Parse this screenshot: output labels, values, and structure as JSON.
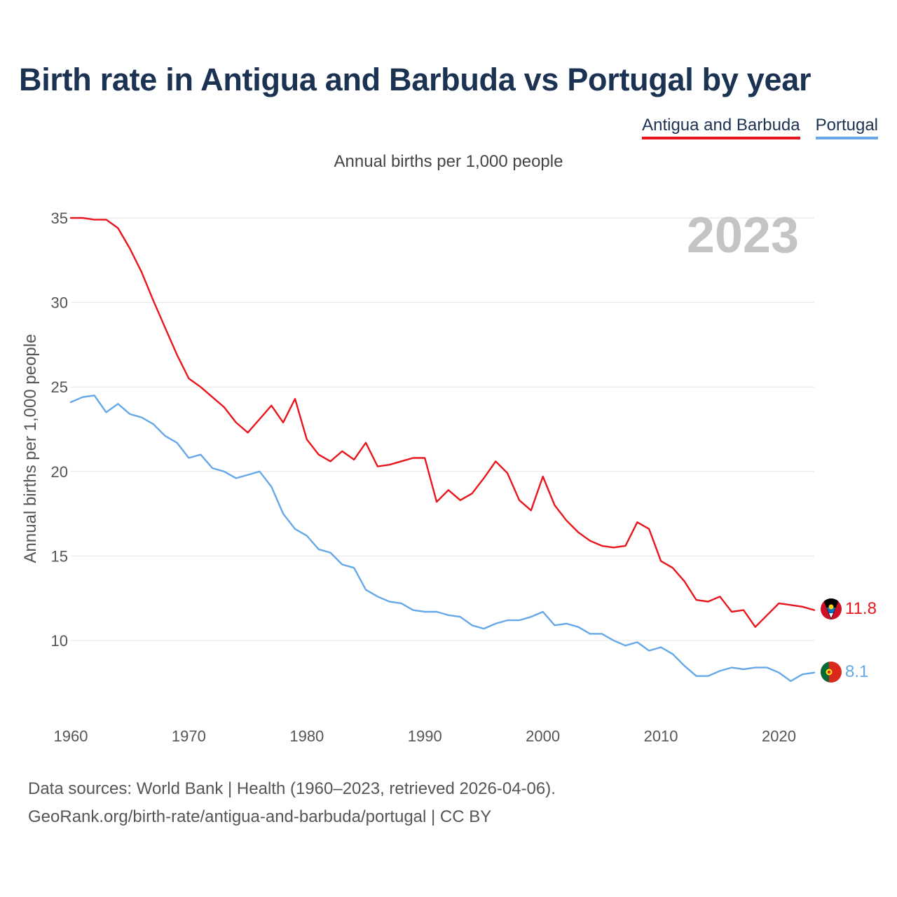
{
  "title": "Birth rate in Antigua and Barbuda vs Portugal by year",
  "legend": [
    "Antigua and Barbuda",
    "Portugal"
  ],
  "subtitle": "Annual births per 1,000 people",
  "footer": {
    "line1": "Data sources: World Bank | Health (1960–2023, retrieved 2026-04-06).",
    "line2": "GeoRank.org/birth-rate/antigua-and-barbuda/portugal | CC BY"
  },
  "colors": {
    "antigua": "#e8161c",
    "portugal": "#66a8e8",
    "title": "#1b3252"
  },
  "chart_data": {
    "type": "line",
    "title": "Birth rate in Antigua and Barbuda vs Portugal by year",
    "subtitle": "Annual births per 1,000 people",
    "xlabel": "",
    "ylabel": "Annual births per 1,000 people",
    "highlight_year": "2023",
    "xlim": [
      1960,
      2023
    ],
    "ylim": [
      6.5,
      36.5
    ],
    "xticks": [
      1960,
      1970,
      1980,
      1990,
      2000,
      2010,
      2020
    ],
    "yticks": [
      10,
      15,
      20,
      25,
      30,
      35
    ],
    "grid": true,
    "legend_position": "top-right",
    "x": [
      1960,
      1961,
      1962,
      1963,
      1964,
      1965,
      1966,
      1967,
      1968,
      1969,
      1970,
      1971,
      1972,
      1973,
      1974,
      1975,
      1976,
      1977,
      1978,
      1979,
      1980,
      1981,
      1982,
      1983,
      1984,
      1985,
      1986,
      1987,
      1988,
      1989,
      1990,
      1991,
      1992,
      1993,
      1994,
      1995,
      1996,
      1997,
      1998,
      1999,
      2000,
      2001,
      2002,
      2003,
      2004,
      2005,
      2006,
      2007,
      2008,
      2009,
      2010,
      2011,
      2012,
      2013,
      2014,
      2015,
      2016,
      2017,
      2018,
      2019,
      2020,
      2021,
      2022,
      2023
    ],
    "series": [
      {
        "name": "Antigua and Barbuda",
        "color": "#e8161c",
        "end_label": "11.8",
        "values": [
          35.0,
          35.0,
          34.9,
          34.9,
          34.4,
          33.2,
          31.8,
          30.1,
          28.5,
          26.9,
          25.5,
          25.0,
          24.4,
          23.8,
          22.9,
          22.3,
          23.1,
          23.9,
          22.9,
          24.3,
          21.9,
          21.0,
          20.6,
          21.2,
          20.7,
          21.7,
          20.3,
          20.4,
          20.6,
          20.8,
          20.8,
          18.2,
          18.9,
          18.3,
          18.7,
          19.6,
          20.6,
          19.9,
          18.3,
          17.7,
          19.7,
          18.0,
          17.1,
          16.4,
          15.9,
          15.6,
          15.5,
          15.6,
          17.0,
          16.6,
          14.7,
          14.3,
          13.5,
          12.4,
          12.3,
          12.6,
          11.7,
          11.8,
          10.8,
          11.5,
          12.2,
          12.1,
          12.0,
          11.8
        ]
      },
      {
        "name": "Portugal",
        "color": "#66a8e8",
        "end_label": "8.1",
        "values": [
          24.1,
          24.4,
          24.5,
          23.5,
          24.0,
          23.4,
          23.2,
          22.8,
          22.1,
          21.7,
          20.8,
          21.0,
          20.2,
          20.0,
          19.6,
          19.8,
          20.0,
          19.1,
          17.5,
          16.6,
          16.2,
          15.4,
          15.2,
          14.5,
          14.3,
          13.0,
          12.6,
          12.3,
          12.2,
          11.8,
          11.7,
          11.7,
          11.5,
          11.4,
          10.9,
          10.7,
          11.0,
          11.2,
          11.2,
          11.4,
          11.7,
          10.9,
          11.0,
          10.8,
          10.4,
          10.4,
          10.0,
          9.7,
          9.9,
          9.4,
          9.6,
          9.2,
          8.5,
          7.9,
          7.9,
          8.2,
          8.4,
          8.3,
          8.4,
          8.4,
          8.1,
          7.6,
          8.0,
          8.1
        ]
      }
    ]
  }
}
